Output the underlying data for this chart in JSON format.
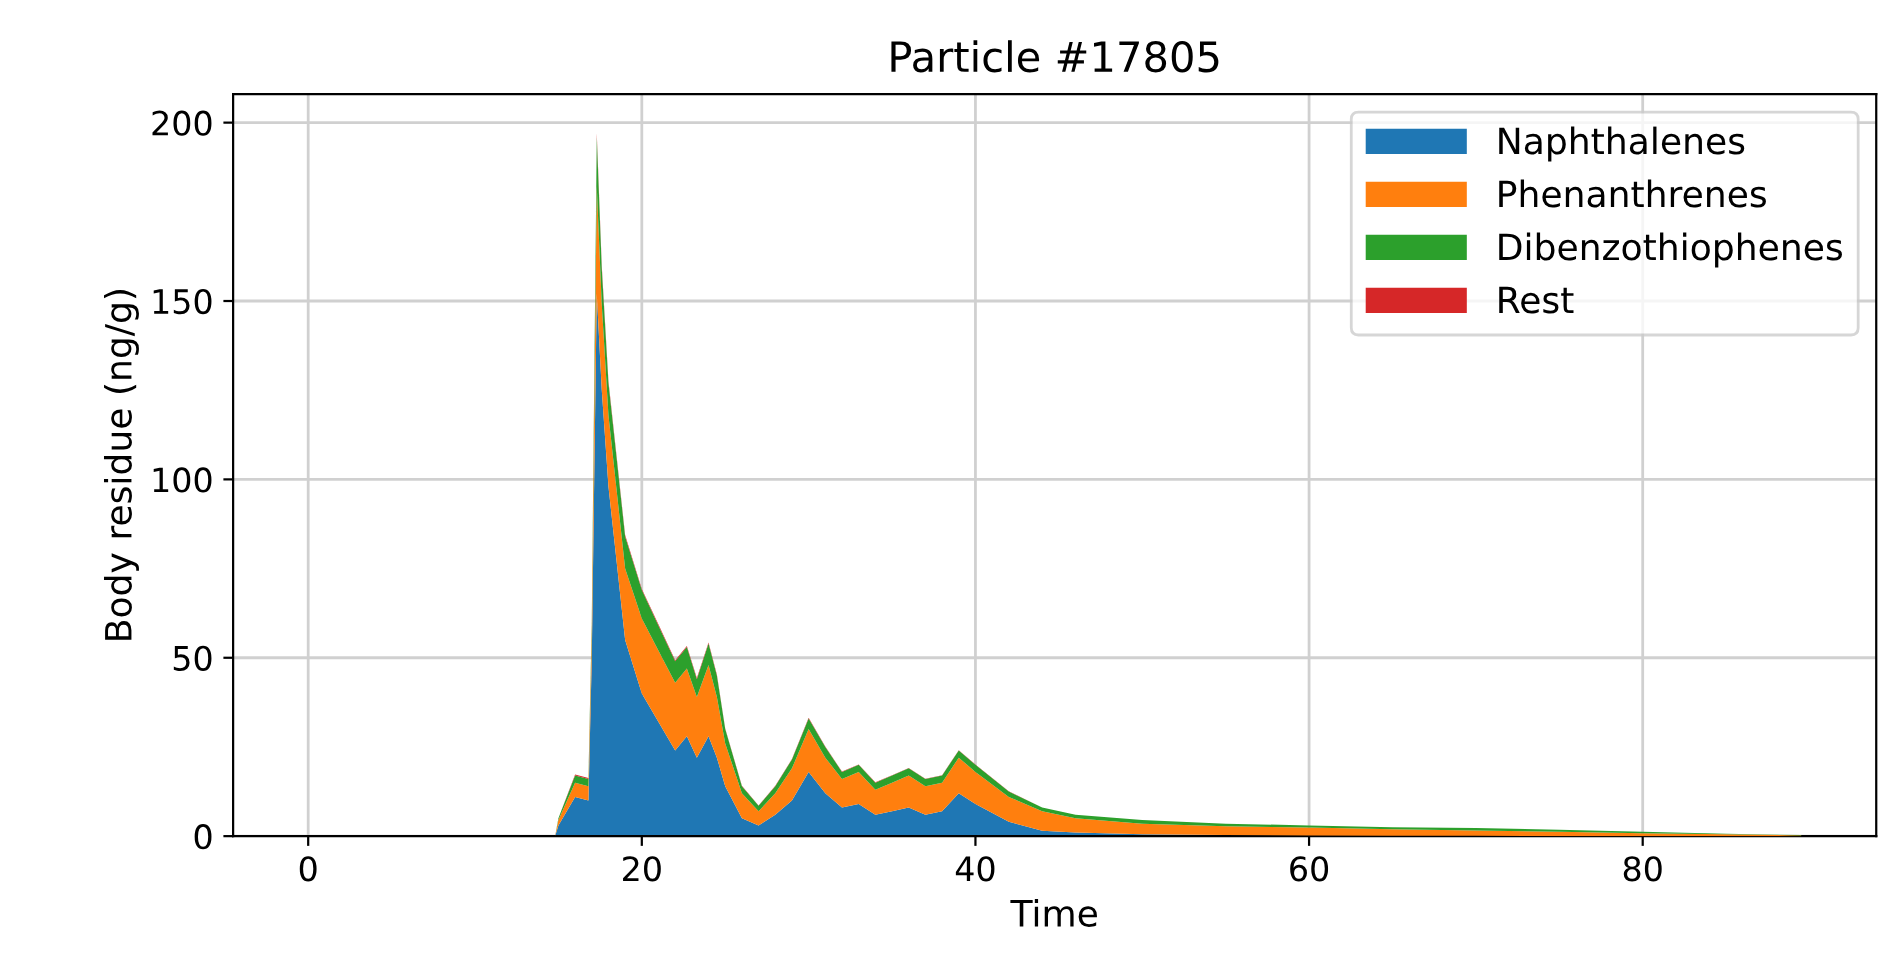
{
  "chart_data": {
    "type": "area",
    "stacked": true,
    "title": "Particle #17805",
    "xlabel": "Time",
    "ylabel": "Body residue (ng/g)",
    "x": [
      0,
      14.8,
      15,
      16,
      16.8,
      17.0,
      17.3,
      17.6,
      18,
      19,
      20,
      21,
      22,
      22.7,
      23.3,
      24,
      24.5,
      25,
      26,
      27,
      28,
      29,
      30,
      31,
      32,
      33,
      34,
      35,
      36,
      37,
      38,
      39,
      40,
      42,
      44,
      46,
      50,
      55,
      60,
      65,
      70,
      75,
      80,
      85,
      89.5
    ],
    "series": [
      {
        "name": "Naphthalenes",
        "color": "#1f77b4",
        "values": [
          0,
          0,
          3,
          11,
          10,
          50,
          152,
          125,
          98,
          55,
          40,
          32,
          24,
          28,
          22,
          28,
          22,
          14,
          5,
          3,
          6,
          10,
          18,
          12,
          8,
          9,
          6,
          7,
          8,
          6,
          7,
          12,
          9,
          4,
          1.5,
          1,
          0.5,
          0.3,
          0.2,
          0.1,
          0.1,
          0,
          0,
          0,
          0
        ]
      },
      {
        "name": "Phenanthrenes",
        "color": "#ff7f0e",
        "values": [
          0,
          0,
          1.5,
          4,
          4,
          7,
          30,
          24,
          20,
          20,
          21,
          20,
          19,
          19,
          17,
          20,
          17,
          12,
          7,
          4,
          6,
          9,
          12,
          10,
          8,
          9,
          7,
          8,
          9,
          8,
          8,
          10,
          9,
          7,
          5.5,
          4,
          3,
          2.5,
          2.2,
          1.8,
          1.5,
          1.2,
          0.8,
          0.5,
          0.2
        ]
      },
      {
        "name": "Dibenzothiophenes",
        "color": "#2ca02c",
        "values": [
          0,
          0,
          0.5,
          2,
          2,
          3,
          14,
          10,
          9,
          9,
          8,
          7,
          6,
          6,
          5,
          6,
          6,
          4,
          2,
          1.5,
          2,
          2.5,
          3,
          3,
          2,
          2,
          2,
          2,
          2,
          2,
          2,
          2,
          2,
          1.5,
          1,
          1,
          1,
          0.7,
          0.6,
          0.6,
          0.7,
          0.6,
          0.4,
          0.2,
          0.1
        ]
      },
      {
        "name": "Rest",
        "color": "#d62728",
        "values": [
          0,
          0,
          0,
          0.3,
          0.3,
          0.3,
          1,
          0.8,
          0.6,
          0.4,
          0.3,
          0.3,
          0.3,
          0.3,
          0.3,
          0.3,
          0.3,
          0.2,
          0.1,
          0.1,
          0.1,
          0.1,
          0.2,
          0.1,
          0.1,
          0.1,
          0.1,
          0.1,
          0.1,
          0.1,
          0.1,
          0.1,
          0.1,
          0.1,
          0,
          0,
          0,
          0,
          0,
          0,
          0,
          0,
          0,
          0,
          0
        ]
      }
    ],
    "xlim": [
      -4.5,
      94
    ],
    "ylim": [
      0,
      208
    ],
    "xticks": [
      0,
      20,
      40,
      60,
      80
    ],
    "yticks": [
      0,
      50,
      100,
      150,
      200
    ],
    "grid": true,
    "legend": "top right"
  }
}
